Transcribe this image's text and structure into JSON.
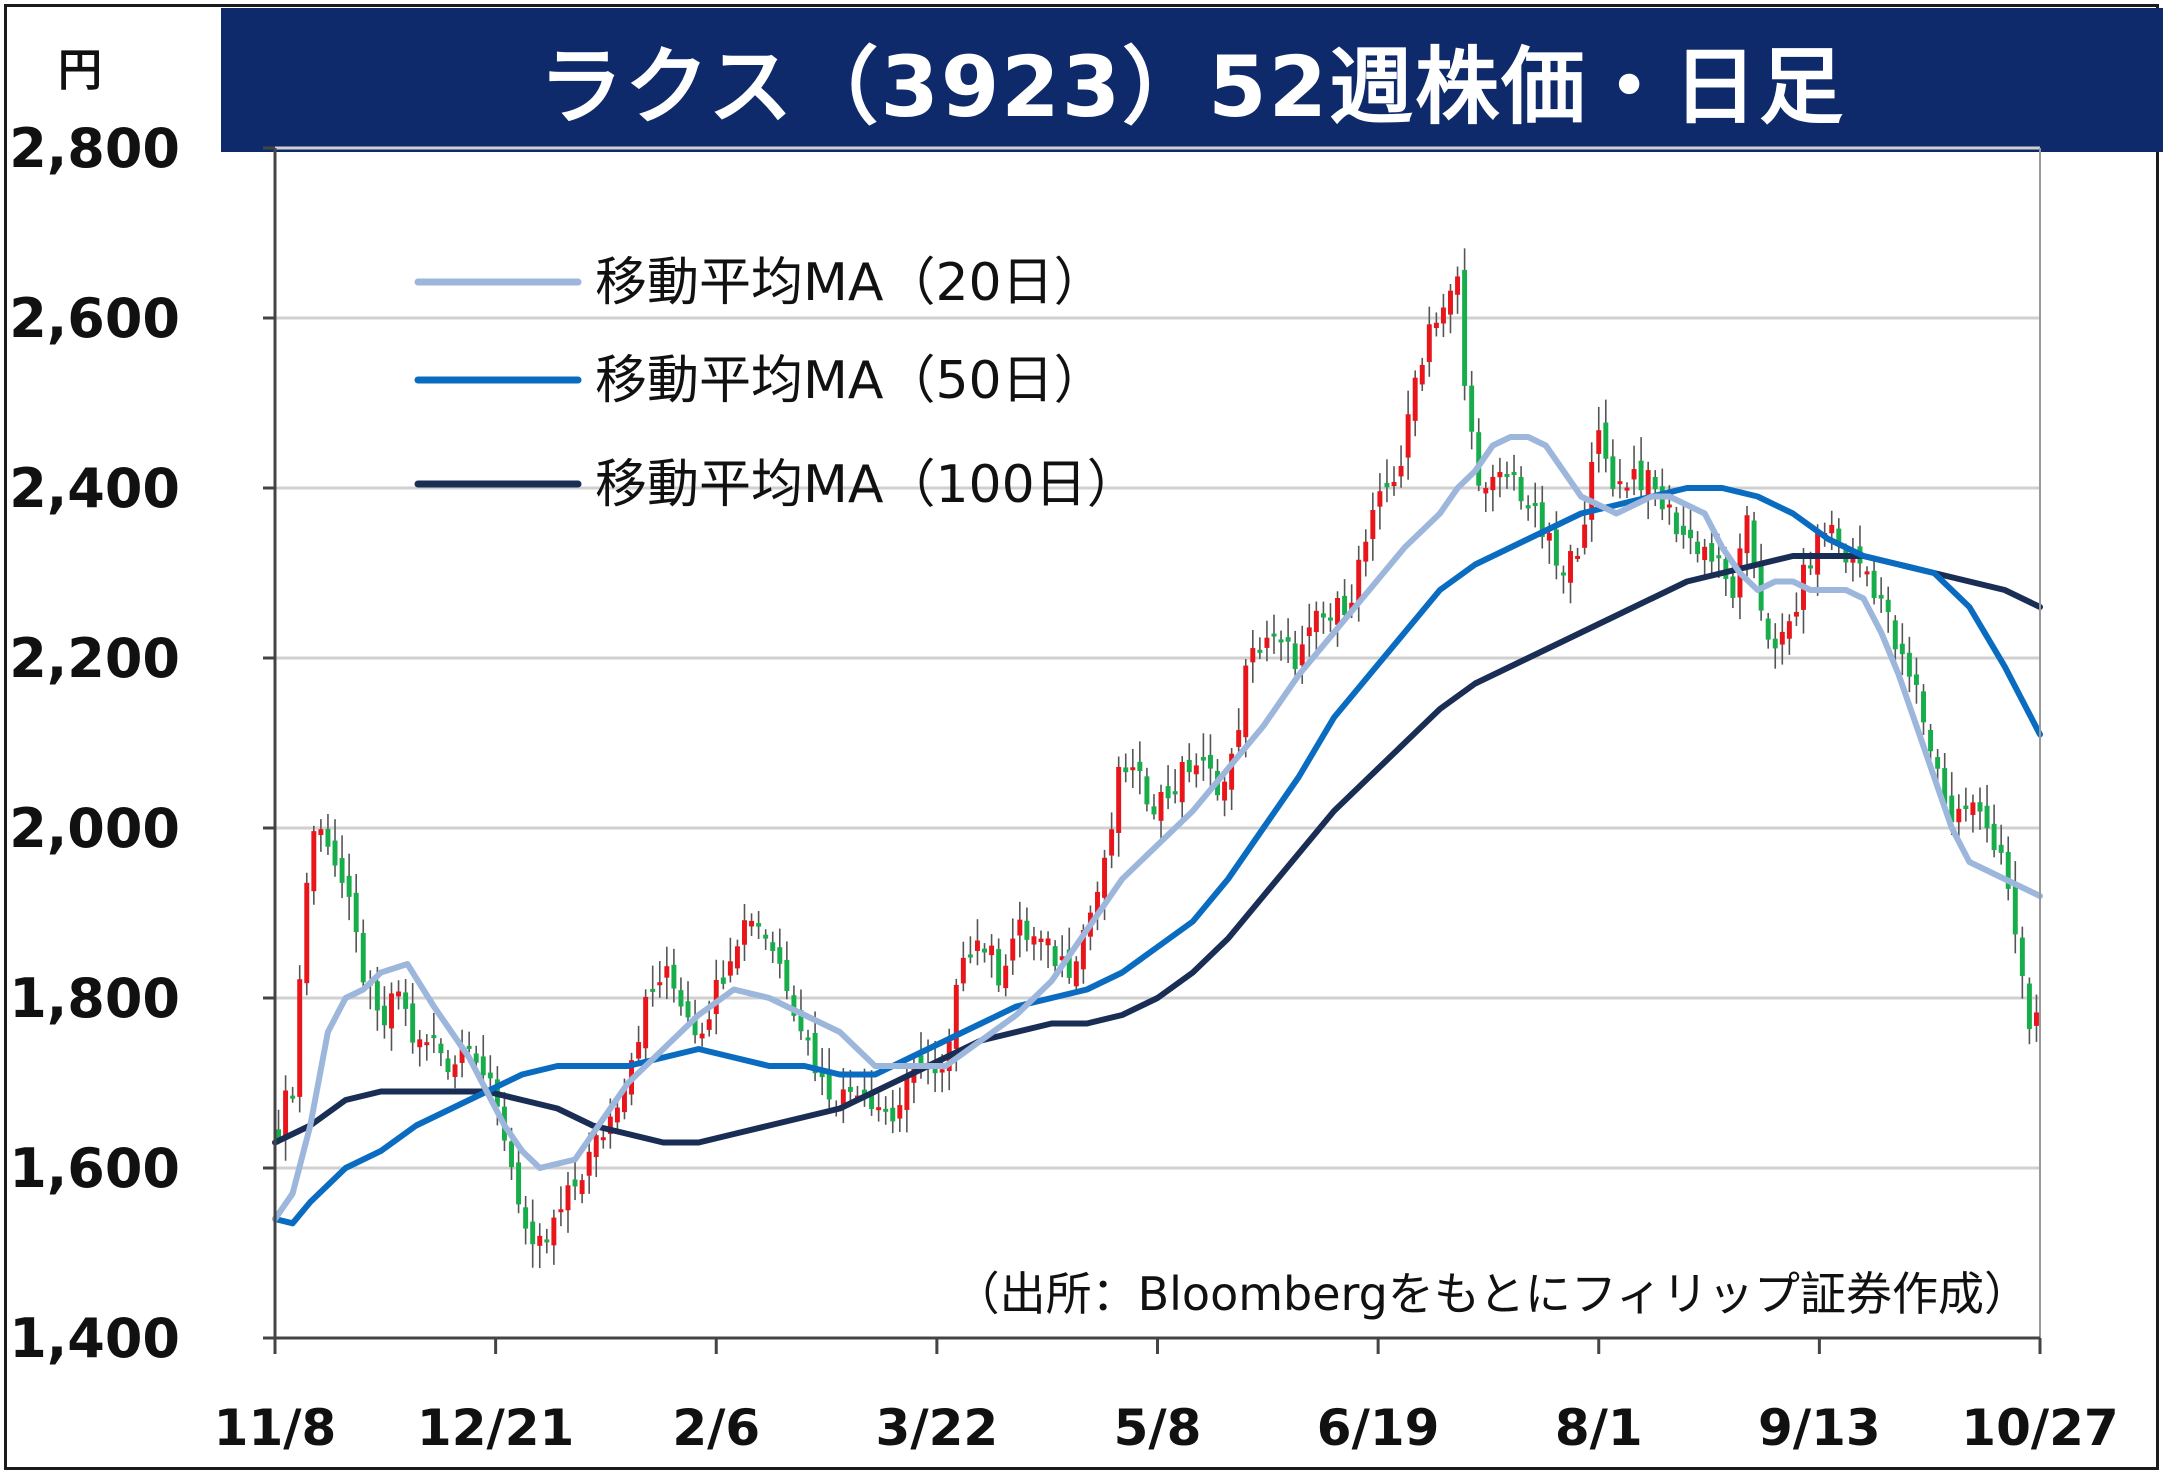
{
  "title": "ラクス（3923）52週株価・日足",
  "unit": "円",
  "source": "（出所：Bloombergをもとにフィリップ証券作成）",
  "colors": {
    "title_bg": "#0f2a6b",
    "up": "#e8161b",
    "down": "#17ad4a",
    "ma20": "#9db6dc",
    "ma50": "#0a6cc0",
    "ma100": "#1a2e55",
    "grid": "#d0d0d0"
  },
  "chart_data": {
    "type": "candlestick",
    "yaxis": {
      "min": 1400,
      "max": 2800,
      "ticks": [
        1400,
        1600,
        1800,
        2000,
        2200,
        2400,
        2600,
        2800
      ],
      "tick_labels": [
        "1,400",
        "1,600",
        "1,800",
        "2,000",
        "2,200",
        "2,400",
        "2,600",
        "2,800"
      ]
    },
    "xaxis": {
      "tick_labels": [
        "11/8",
        "12/21",
        "2/6",
        "3/22",
        "5/8",
        "6/19",
        "8/1",
        "9/13",
        "10/27"
      ],
      "tick_positions": [
        0,
        0.125,
        0.25,
        0.375,
        0.5,
        0.625,
        0.75,
        0.875,
        1.0
      ]
    },
    "legend": {
      "position": "top-left",
      "entries": [
        {
          "key": "ma20",
          "label": "移動平均MA（20日）"
        },
        {
          "key": "ma50",
          "label": "移動平均MA（50日）"
        },
        {
          "key": "ma100",
          "label": "移動平均MA（100日）"
        }
      ]
    },
    "grid": true,
    "close_anchors": [
      [
        0.0,
        1640
      ],
      [
        0.01,
        1700
      ],
      [
        0.02,
        2000
      ],
      [
        0.03,
        1990
      ],
      [
        0.04,
        1920
      ],
      [
        0.05,
        1830
      ],
      [
        0.06,
        1760
      ],
      [
        0.07,
        1810
      ],
      [
        0.08,
        1740
      ],
      [
        0.09,
        1750
      ],
      [
        0.1,
        1720
      ],
      [
        0.11,
        1760
      ],
      [
        0.12,
        1700
      ],
      [
        0.13,
        1640
      ],
      [
        0.14,
        1550
      ],
      [
        0.145,
        1490
      ],
      [
        0.155,
        1520
      ],
      [
        0.165,
        1560
      ],
      [
        0.175,
        1600
      ],
      [
        0.19,
        1660
      ],
      [
        0.2,
        1720
      ],
      [
        0.21,
        1790
      ],
      [
        0.22,
        1830
      ],
      [
        0.23,
        1800
      ],
      [
        0.24,
        1760
      ],
      [
        0.25,
        1810
      ],
      [
        0.26,
        1870
      ],
      [
        0.27,
        1900
      ],
      [
        0.28,
        1870
      ],
      [
        0.29,
        1820
      ],
      [
        0.3,
        1760
      ],
      [
        0.31,
        1700
      ],
      [
        0.32,
        1680
      ],
      [
        0.33,
        1700
      ],
      [
        0.34,
        1680
      ],
      [
        0.35,
        1660
      ],
      [
        0.36,
        1700
      ],
      [
        0.365,
        1730
      ],
      [
        0.375,
        1700
      ],
      [
        0.38,
        1710
      ],
      [
        0.39,
        1860
      ],
      [
        0.4,
        1870
      ],
      [
        0.41,
        1830
      ],
      [
        0.42,
        1880
      ],
      [
        0.43,
        1870
      ],
      [
        0.44,
        1850
      ],
      [
        0.45,
        1840
      ],
      [
        0.46,
        1890
      ],
      [
        0.47,
        1950
      ],
      [
        0.48,
        2080
      ],
      [
        0.49,
        2050
      ],
      [
        0.5,
        2030
      ],
      [
        0.51,
        2050
      ],
      [
        0.52,
        2080
      ],
      [
        0.53,
        2060
      ],
      [
        0.54,
        2050
      ],
      [
        0.55,
        2180
      ],
      [
        0.56,
        2230
      ],
      [
        0.57,
        2210
      ],
      [
        0.58,
        2200
      ],
      [
        0.59,
        2240
      ],
      [
        0.6,
        2250
      ],
      [
        0.61,
        2280
      ],
      [
        0.62,
        2350
      ],
      [
        0.63,
        2400
      ],
      [
        0.64,
        2440
      ],
      [
        0.645,
        2520
      ],
      [
        0.655,
        2600
      ],
      [
        0.665,
        2620
      ],
      [
        0.67,
        2640
      ],
      [
        0.675,
        2490
      ],
      [
        0.685,
        2390
      ],
      [
        0.7,
        2420
      ],
      [
        0.71,
        2380
      ],
      [
        0.72,
        2340
      ],
      [
        0.73,
        2290
      ],
      [
        0.74,
        2350
      ],
      [
        0.75,
        2460
      ],
      [
        0.76,
        2400
      ],
      [
        0.77,
        2420
      ],
      [
        0.78,
        2400
      ],
      [
        0.79,
        2370
      ],
      [
        0.8,
        2340
      ],
      [
        0.81,
        2330
      ],
      [
        0.82,
        2300
      ],
      [
        0.825,
        2270
      ],
      [
        0.835,
        2360
      ],
      [
        0.84,
        2280
      ],
      [
        0.85,
        2200
      ],
      [
        0.86,
        2250
      ],
      [
        0.87,
        2320
      ],
      [
        0.88,
        2360
      ],
      [
        0.89,
        2320
      ],
      [
        0.9,
        2310
      ],
      [
        0.91,
        2270
      ],
      [
        0.92,
        2200
      ],
      [
        0.93,
        2160
      ],
      [
        0.94,
        2080
      ],
      [
        0.95,
        2010
      ],
      [
        0.96,
        2030
      ],
      [
        0.97,
        2000
      ],
      [
        0.98,
        1970
      ],
      [
        0.985,
        1880
      ],
      [
        0.99,
        1810
      ],
      [
        0.995,
        1750
      ],
      [
        1.0,
        1800
      ]
    ],
    "ma20": [
      [
        0.0,
        1540
      ],
      [
        0.01,
        1570
      ],
      [
        0.02,
        1650
      ],
      [
        0.03,
        1760
      ],
      [
        0.04,
        1800
      ],
      [
        0.05,
        1810
      ],
      [
        0.06,
        1830
      ],
      [
        0.075,
        1840
      ],
      [
        0.09,
        1790
      ],
      [
        0.1,
        1760
      ],
      [
        0.11,
        1730
      ],
      [
        0.12,
        1690
      ],
      [
        0.13,
        1650
      ],
      [
        0.14,
        1620
      ],
      [
        0.15,
        1600
      ],
      [
        0.17,
        1610
      ],
      [
        0.18,
        1640
      ],
      [
        0.2,
        1700
      ],
      [
        0.22,
        1740
      ],
      [
        0.24,
        1780
      ],
      [
        0.26,
        1810
      ],
      [
        0.28,
        1800
      ],
      [
        0.3,
        1780
      ],
      [
        0.32,
        1760
      ],
      [
        0.34,
        1720
      ],
      [
        0.36,
        1720
      ],
      [
        0.38,
        1720
      ],
      [
        0.4,
        1750
      ],
      [
        0.42,
        1780
      ],
      [
        0.44,
        1820
      ],
      [
        0.46,
        1880
      ],
      [
        0.48,
        1940
      ],
      [
        0.5,
        1980
      ],
      [
        0.52,
        2020
      ],
      [
        0.54,
        2070
      ],
      [
        0.56,
        2120
      ],
      [
        0.58,
        2180
      ],
      [
        0.6,
        2230
      ],
      [
        0.62,
        2280
      ],
      [
        0.64,
        2330
      ],
      [
        0.66,
        2370
      ],
      [
        0.67,
        2400
      ],
      [
        0.68,
        2420
      ],
      [
        0.69,
        2450
      ],
      [
        0.7,
        2460
      ],
      [
        0.71,
        2460
      ],
      [
        0.72,
        2450
      ],
      [
        0.73,
        2420
      ],
      [
        0.74,
        2390
      ],
      [
        0.75,
        2380
      ],
      [
        0.76,
        2370
      ],
      [
        0.77,
        2380
      ],
      [
        0.78,
        2390
      ],
      [
        0.79,
        2390
      ],
      [
        0.8,
        2380
      ],
      [
        0.81,
        2370
      ],
      [
        0.82,
        2330
      ],
      [
        0.83,
        2300
      ],
      [
        0.84,
        2280
      ],
      [
        0.85,
        2290
      ],
      [
        0.86,
        2290
      ],
      [
        0.87,
        2280
      ],
      [
        0.88,
        2280
      ],
      [
        0.89,
        2280
      ],
      [
        0.9,
        2270
      ],
      [
        0.91,
        2230
      ],
      [
        0.92,
        2180
      ],
      [
        0.93,
        2120
      ],
      [
        0.94,
        2060
      ],
      [
        0.95,
        2000
      ],
      [
        0.96,
        1960
      ],
      [
        0.97,
        1950
      ],
      [
        0.98,
        1940
      ],
      [
        0.99,
        1930
      ],
      [
        1.0,
        1920
      ]
    ],
    "ma50": [
      [
        0.0,
        1540
      ],
      [
        0.01,
        1535
      ],
      [
        0.02,
        1560
      ],
      [
        0.04,
        1600
      ],
      [
        0.06,
        1620
      ],
      [
        0.08,
        1650
      ],
      [
        0.1,
        1670
      ],
      [
        0.12,
        1690
      ],
      [
        0.14,
        1710
      ],
      [
        0.16,
        1720
      ],
      [
        0.18,
        1720
      ],
      [
        0.2,
        1720
      ],
      [
        0.22,
        1730
      ],
      [
        0.24,
        1740
      ],
      [
        0.26,
        1730
      ],
      [
        0.28,
        1720
      ],
      [
        0.3,
        1720
      ],
      [
        0.32,
        1710
      ],
      [
        0.34,
        1710
      ],
      [
        0.36,
        1730
      ],
      [
        0.38,
        1750
      ],
      [
        0.4,
        1770
      ],
      [
        0.42,
        1790
      ],
      [
        0.44,
        1800
      ],
      [
        0.46,
        1810
      ],
      [
        0.48,
        1830
      ],
      [
        0.5,
        1860
      ],
      [
        0.52,
        1890
      ],
      [
        0.54,
        1940
      ],
      [
        0.56,
        2000
      ],
      [
        0.58,
        2060
      ],
      [
        0.6,
        2130
      ],
      [
        0.62,
        2180
      ],
      [
        0.64,
        2230
      ],
      [
        0.66,
        2280
      ],
      [
        0.68,
        2310
      ],
      [
        0.7,
        2330
      ],
      [
        0.72,
        2350
      ],
      [
        0.74,
        2370
      ],
      [
        0.76,
        2380
      ],
      [
        0.78,
        2390
      ],
      [
        0.8,
        2400
      ],
      [
        0.82,
        2400
      ],
      [
        0.84,
        2390
      ],
      [
        0.86,
        2370
      ],
      [
        0.88,
        2340
      ],
      [
        0.9,
        2320
      ],
      [
        0.92,
        2310
      ],
      [
        0.94,
        2300
      ],
      [
        0.96,
        2260
      ],
      [
        0.98,
        2190
      ],
      [
        1.0,
        2110
      ]
    ],
    "ma100": [
      [
        0.0,
        1630
      ],
      [
        0.02,
        1650
      ],
      [
        0.04,
        1680
      ],
      [
        0.06,
        1690
      ],
      [
        0.08,
        1690
      ],
      [
        0.1,
        1690
      ],
      [
        0.12,
        1690
      ],
      [
        0.14,
        1680
      ],
      [
        0.16,
        1670
      ],
      [
        0.18,
        1650
      ],
      [
        0.2,
        1640
      ],
      [
        0.22,
        1630
      ],
      [
        0.24,
        1630
      ],
      [
        0.26,
        1640
      ],
      [
        0.28,
        1650
      ],
      [
        0.3,
        1660
      ],
      [
        0.32,
        1670
      ],
      [
        0.34,
        1690
      ],
      [
        0.36,
        1710
      ],
      [
        0.38,
        1730
      ],
      [
        0.4,
        1750
      ],
      [
        0.42,
        1760
      ],
      [
        0.44,
        1770
      ],
      [
        0.46,
        1770
      ],
      [
        0.48,
        1780
      ],
      [
        0.5,
        1800
      ],
      [
        0.52,
        1830
      ],
      [
        0.54,
        1870
      ],
      [
        0.56,
        1920
      ],
      [
        0.58,
        1970
      ],
      [
        0.6,
        2020
      ],
      [
        0.62,
        2060
      ],
      [
        0.64,
        2100
      ],
      [
        0.66,
        2140
      ],
      [
        0.68,
        2170
      ],
      [
        0.7,
        2190
      ],
      [
        0.72,
        2210
      ],
      [
        0.74,
        2230
      ],
      [
        0.76,
        2250
      ],
      [
        0.78,
        2270
      ],
      [
        0.8,
        2290
      ],
      [
        0.82,
        2300
      ],
      [
        0.84,
        2310
      ],
      [
        0.86,
        2320
      ],
      [
        0.88,
        2320
      ],
      [
        0.9,
        2320
      ],
      [
        0.92,
        2310
      ],
      [
        0.94,
        2300
      ],
      [
        0.96,
        2290
      ],
      [
        0.98,
        2280
      ],
      [
        1.0,
        2260
      ]
    ]
  }
}
